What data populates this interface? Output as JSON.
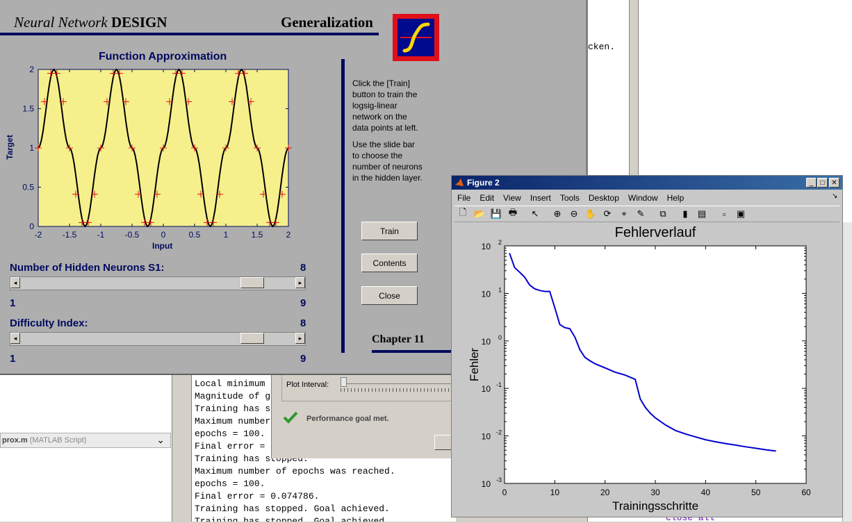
{
  "nnd": {
    "title_italic": "Neural Network",
    "title_bold": "DESIGN",
    "heading": "Generalization",
    "plot_title": "Function Approximation",
    "ylabel": "Target",
    "xlabel": "Input",
    "xticks": [
      "-2",
      "-1.5",
      "-1",
      "-0.5",
      "0",
      "0.5",
      "1",
      "1.5",
      "2"
    ],
    "yticks": [
      "0",
      "0.5",
      "1",
      "1.5",
      "2"
    ],
    "instructions1": [
      "Click the [Train]",
      "button to train the",
      "logsig-linear",
      "network on the",
      "data points at left."
    ],
    "instructions2": [
      "Use the slide bar",
      "to choose the",
      "number of neurons",
      "in the hidden layer."
    ],
    "train_label": "Train",
    "contents_label": "Contents",
    "close_label": "Close",
    "chapter": "Chapter 11",
    "hidden_label": "Number of Hidden Neurons S1:",
    "hidden_value": "8",
    "hidden_min": "1",
    "hidden_max": "9",
    "difficulty_label": "Difficulty Index:",
    "difficulty_value": "8",
    "difficulty_min": "1",
    "difficulty_max": "9",
    "hidden_fraction": 0.875,
    "difficulty_fraction": 0.875
  },
  "editor": {
    "snippet": "cken.",
    "bottom_code": "close all"
  },
  "script_tab": {
    "name": "prox.m",
    "type": "(MATLAB Script)"
  },
  "cmd_lines": [
    "Local minimum",
    "Magnitude of g",
    "Training has s",
    "Maximum number",
    "epochs = 100.",
    "Final error =",
    "Training has stopped.",
    "Maximum number of epochs was reached.",
    "epochs = 100.",
    "Final error = 0.074786.",
    "Training has stopped. Goal achieved.",
    "Training has stopped. Goal achieved."
  ],
  "nntool": {
    "plot_interval_label": "Plot Interval:",
    "status": "Performance goal met."
  },
  "figure2": {
    "window_title": "Figure 2",
    "menu": [
      "File",
      "Edit",
      "View",
      "Insert",
      "Tools",
      "Desktop",
      "Window",
      "Help"
    ],
    "toolbar_icons": [
      "new-figure-icon",
      "open-file-icon",
      "save-icon",
      "print-icon",
      "pointer-icon",
      "zoom-in-icon",
      "zoom-out-icon",
      "pan-icon",
      "rotate-icon",
      "data-cursor-icon",
      "brush-icon",
      "link-icon",
      "colorbar-icon",
      "legend-icon",
      "hide-tools-icon",
      "show-tools-icon"
    ],
    "title": "Fehlerverlauf",
    "xlabel": "Trainingsschritte",
    "ylabel": "Fehler",
    "xticks": [
      "0",
      "10",
      "20",
      "30",
      "40",
      "50",
      "60"
    ],
    "yticks": [
      {
        "base": "10",
        "exp": "-3"
      },
      {
        "base": "10",
        "exp": "-2"
      },
      {
        "base": "10",
        "exp": "-1"
      },
      {
        "base": "10",
        "exp": "0"
      },
      {
        "base": "10",
        "exp": "1"
      },
      {
        "base": "10",
        "exp": "2"
      }
    ]
  },
  "chart_data": [
    {
      "type": "line",
      "title": "Function Approximation",
      "xlabel": "Input",
      "ylabel": "Target",
      "xlim": [
        -2,
        2
      ],
      "ylim": [
        0,
        2
      ],
      "series": [
        {
          "style": "curve",
          "x": [
            -2,
            -1.75,
            -1.5,
            -1.25,
            -1,
            -0.75,
            -0.5,
            -0.25,
            0,
            0.25,
            0.5,
            0.75,
            1,
            1.25,
            1.5,
            1.75,
            2
          ],
          "y": [
            1,
            2,
            1,
            0,
            1,
            2,
            1,
            0,
            1,
            2,
            1,
            0,
            1,
            2,
            1,
            0,
            1
          ]
        },
        {
          "style": "plus-markers",
          "x": [
            -2,
            -1.9,
            -1.8,
            -1.7,
            -1.6,
            -1.5,
            -1.4,
            -1.3,
            -1.2,
            -1.1,
            -1,
            -0.9,
            -0.8,
            -0.7,
            -0.6,
            -0.5,
            -0.4,
            -0.3,
            -0.2,
            -0.1,
            0,
            0.1,
            0.2,
            0.3,
            0.4,
            0.5,
            0.6,
            0.7,
            0.8,
            0.9,
            1,
            1.1,
            1.2,
            1.3,
            1.4,
            1.5,
            1.6,
            1.7,
            1.8,
            1.9,
            2
          ],
          "y": [
            1,
            1.59,
            1.95,
            1.95,
            1.59,
            1,
            0.41,
            0.05,
            0.05,
            0.41,
            1,
            1.59,
            1.95,
            1.95,
            1.59,
            1,
            0.41,
            0.05,
            0.05,
            0.41,
            1,
            1.59,
            1.95,
            1.95,
            1.59,
            1,
            0.41,
            0.05,
            0.05,
            0.41,
            1,
            1.59,
            1.95,
            1.95,
            1.59,
            1,
            0.41,
            0.05,
            0.05,
            0.41,
            1
          ]
        }
      ]
    },
    {
      "type": "line",
      "title": "Fehlerverlauf",
      "xlabel": "Trainingsschritte",
      "ylabel": "Fehler",
      "xlim": [
        0,
        60
      ],
      "ylim": [
        0.001,
        100
      ],
      "yscale": "log",
      "series": [
        {
          "x": [
            1,
            2,
            3,
            4,
            5,
            6,
            7,
            8,
            9,
            10,
            11,
            12,
            13,
            14,
            15,
            16,
            17,
            18,
            20,
            22,
            24,
            26,
            27,
            28,
            29,
            30,
            32,
            34,
            36,
            38,
            40,
            42,
            44,
            46,
            48,
            50,
            52,
            54
          ],
          "y": [
            70,
            35,
            28,
            22,
            15,
            12.5,
            11.5,
            11,
            11,
            5,
            2.2,
            1.9,
            1.8,
            1.2,
            0.65,
            0.45,
            0.38,
            0.33,
            0.27,
            0.22,
            0.19,
            0.155,
            0.06,
            0.04,
            0.03,
            0.024,
            0.017,
            0.013,
            0.011,
            0.0095,
            0.0083,
            0.0075,
            0.0069,
            0.0064,
            0.0059,
            0.0055,
            0.0051,
            0.0048
          ]
        }
      ]
    }
  ]
}
